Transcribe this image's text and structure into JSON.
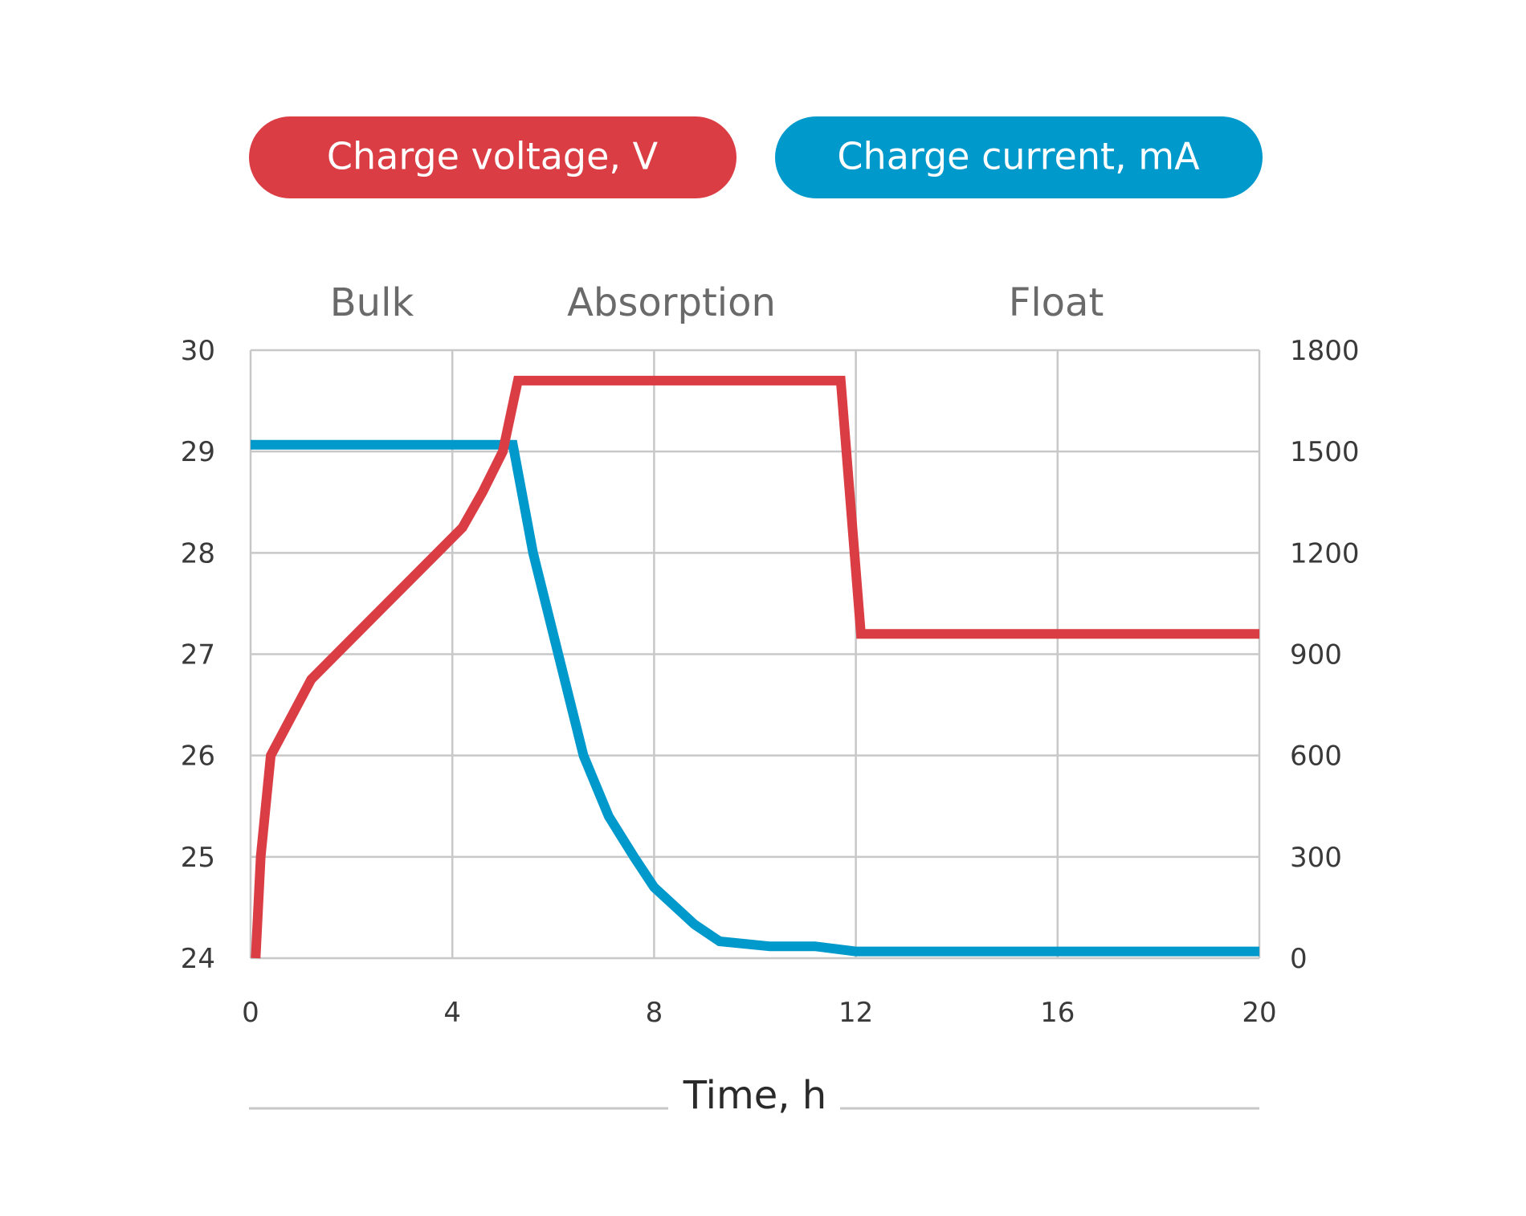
{
  "legend": {
    "voltage_label": "Charge voltage, V",
    "current_label": "Charge current, mA"
  },
  "colors": {
    "voltage": "#db3d44",
    "current": "#0099cc",
    "grid": "#c8c8c8",
    "phase_text": "#6a6a6a"
  },
  "chart_data": {
    "type": "line",
    "phases": [
      "Bulk",
      "Absorption",
      "Float"
    ],
    "xlabel": "Time, h",
    "xlim": [
      0,
      20
    ],
    "x_ticks": [
      0,
      4,
      8,
      12,
      16,
      20
    ],
    "y_left": {
      "lim": [
        24,
        30
      ],
      "ticks": [
        24,
        25,
        26,
        27,
        28,
        29,
        30
      ]
    },
    "y_right": {
      "lim": [
        0,
        1800
      ],
      "ticks": [
        0,
        300,
        600,
        900,
        1200,
        1500,
        1800
      ]
    },
    "grid": true,
    "series": [
      {
        "name": "Charge voltage, V",
        "axis": "left",
        "color": "#db3d44",
        "x": [
          0.1,
          0.2,
          0.4,
          1.2,
          2.3,
          3.3,
          4.2,
          4.6,
          5.0,
          5.3,
          11.7,
          12.1,
          20
        ],
        "y": [
          24.0,
          25.0,
          26.0,
          26.75,
          27.3,
          27.8,
          28.25,
          28.6,
          29.0,
          29.7,
          29.7,
          27.2,
          27.2
        ]
      },
      {
        "name": "Charge current, mA",
        "axis": "right",
        "color": "#0099cc",
        "x": [
          0,
          5.2,
          5.6,
          6.1,
          6.6,
          7.1,
          7.6,
          8.0,
          8.8,
          9.3,
          10.3,
          11.2,
          12.0,
          20
        ],
        "y": [
          1520,
          1520,
          1200,
          900,
          600,
          420,
          300,
          210,
          100,
          50,
          35,
          35,
          20,
          20
        ]
      }
    ]
  }
}
